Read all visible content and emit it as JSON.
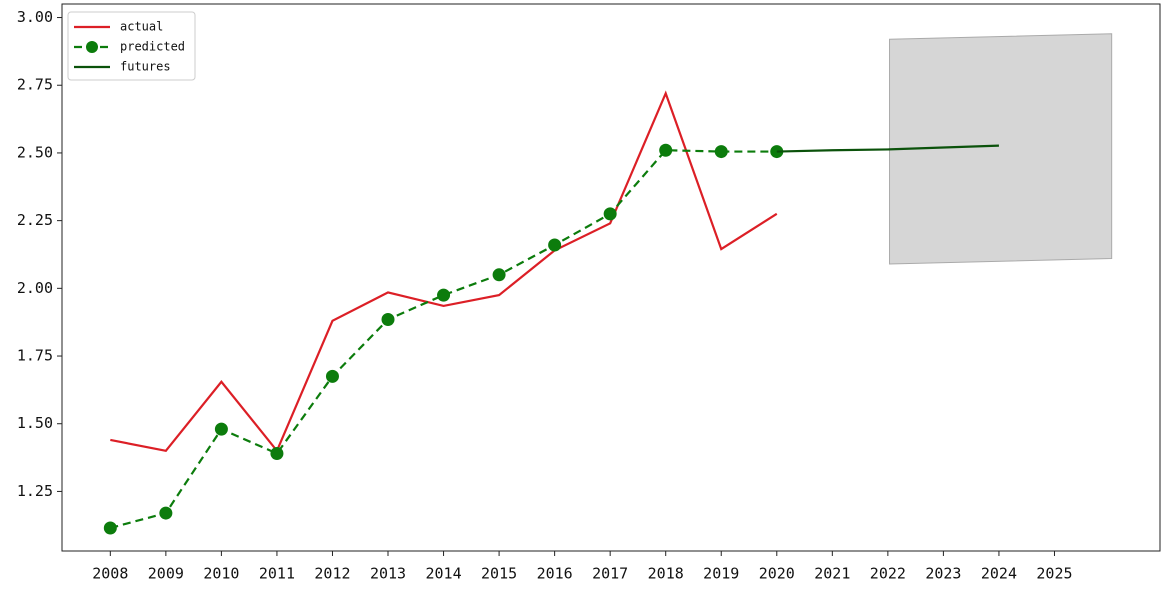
{
  "chart_data": {
    "type": "line",
    "xlim": [
      2007.13,
      2026.9
    ],
    "xticks": [
      2008,
      2009,
      2010,
      2011,
      2012,
      2013,
      2014,
      2015,
      2016,
      2017,
      2018,
      2019,
      2020,
      2021,
      2022,
      2023,
      2024,
      2025
    ],
    "ylim": [
      1.03,
      3.05
    ],
    "yticks": [
      {
        "value": 1.25,
        "label": "1.25"
      },
      {
        "value": 1.5,
        "label": "1.50"
      },
      {
        "value": 1.75,
        "label": "1.75"
      },
      {
        "value": 2.0,
        "label": "2.00"
      },
      {
        "value": 2.25,
        "label": "2.25"
      },
      {
        "value": 2.5,
        "label": "2.50"
      },
      {
        "value": 2.75,
        "label": "2.75"
      },
      {
        "value": 3.0,
        "label": "3.00"
      }
    ],
    "legend": "upper left",
    "series": [
      {
        "name": "actual",
        "color": "#dc1f26",
        "linestyle": "solid",
        "x": [
          2008,
          2009,
          2010,
          2011,
          2012,
          2013,
          2014,
          2015,
          2016,
          2017,
          2018,
          2019,
          2020
        ],
        "values": [
          1.44,
          1.4,
          1.655,
          1.4,
          1.88,
          1.985,
          1.935,
          1.975,
          2.14,
          2.24,
          2.72,
          2.145,
          2.275
        ]
      },
      {
        "name": "predicted",
        "color": "#0c7c0c",
        "linestyle": "dashed",
        "marker": "o",
        "x": [
          2008,
          2009,
          2010,
          2011,
          2012,
          2013,
          2014,
          2015,
          2016,
          2017,
          2018,
          2019,
          2020
        ],
        "values": [
          1.115,
          1.17,
          1.48,
          1.39,
          1.675,
          1.885,
          1.975,
          2.05,
          2.16,
          2.275,
          2.51,
          2.505,
          2.505
        ]
      },
      {
        "name": "futures",
        "color": "#0b520b",
        "linestyle": "solid",
        "x": [
          2020,
          2021,
          2022,
          2023,
          2024
        ],
        "values": [
          2.505,
          2.51,
          2.513,
          2.52,
          2.527
        ]
      }
    ],
    "band": {
      "color": "#d6d6d6",
      "x": [
        2022.03,
        2026.03
      ],
      "lower": [
        2.09,
        2.11
      ],
      "upper": [
        2.92,
        2.94
      ]
    }
  }
}
